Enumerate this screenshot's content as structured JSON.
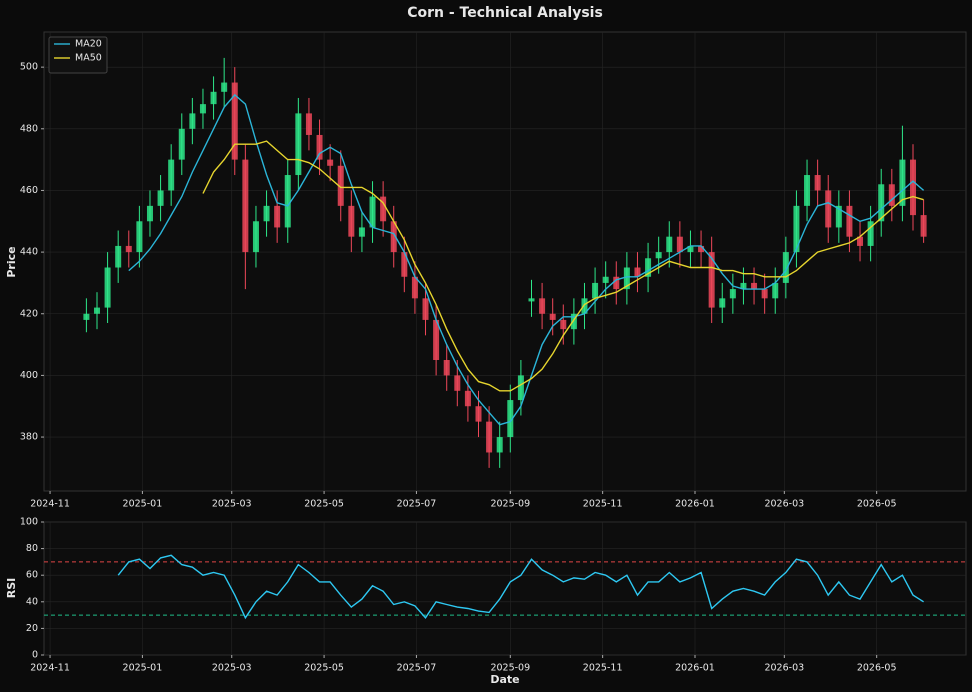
{
  "chart_data": [
    {
      "type": "candlestick",
      "title": "Corn - Technical Analysis",
      "ylabel": "Price",
      "x": [
        "2024-11-25",
        "2024-12-02",
        "2024-12-09",
        "2024-12-16",
        "2024-12-23",
        "2024-12-30",
        "2025-01-06",
        "2025-01-13",
        "2025-01-20",
        "2025-01-27",
        "2025-02-03",
        "2025-02-10",
        "2025-02-17",
        "2025-02-24",
        "2025-03-03",
        "2025-03-10",
        "2025-03-17",
        "2025-03-24",
        "2025-03-31",
        "2025-04-07",
        "2025-04-14",
        "2025-04-21",
        "2025-04-28",
        "2025-05-05",
        "2025-05-12",
        "2025-05-19",
        "2025-05-26",
        "2025-06-02",
        "2025-06-09",
        "2025-06-16",
        "2025-06-23",
        "2025-06-30",
        "2025-07-07",
        "2025-07-14",
        "2025-07-21",
        "2025-07-28",
        "2025-08-04",
        "2025-08-11",
        "2025-08-18",
        "2025-08-25",
        "2025-09-01",
        "2025-09-08",
        "2025-09-15",
        "2025-09-22",
        "2025-09-29",
        "2025-10-06",
        "2025-10-13",
        "2025-10-20",
        "2025-10-27",
        "2025-11-03",
        "2025-11-10",
        "2025-11-17",
        "2025-11-24",
        "2025-12-01",
        "2025-12-08",
        "2025-12-15",
        "2025-12-22",
        "2025-12-29",
        "2026-01-05",
        "2026-01-12",
        "2026-01-19",
        "2026-01-26",
        "2026-02-02",
        "2026-02-09",
        "2026-02-16",
        "2026-02-23",
        "2026-03-02",
        "2026-03-09",
        "2026-03-16",
        "2026-03-23",
        "2026-03-30",
        "2026-04-06",
        "2026-04-13",
        "2026-04-20",
        "2026-04-27",
        "2026-05-04",
        "2026-05-11",
        "2026-05-18",
        "2026-05-25",
        "2026-06-01"
      ],
      "open": [
        418,
        420,
        422,
        435,
        442,
        440,
        450,
        455,
        460,
        470,
        480,
        485,
        488,
        492,
        495,
        470,
        440,
        450,
        455,
        448,
        465,
        485,
        478,
        470,
        468,
        455,
        445,
        448,
        458,
        450,
        440,
        432,
        425,
        418,
        405,
        400,
        395,
        390,
        385,
        375,
        380,
        392,
        424,
        425,
        420,
        418,
        415,
        420,
        425,
        430,
        432,
        428,
        435,
        432,
        438,
        440,
        445,
        440,
        442,
        440,
        422,
        425,
        428,
        430,
        428,
        425,
        430,
        440,
        455,
        465,
        460,
        448,
        455,
        445,
        442,
        450,
        462,
        455,
        470,
        452
      ],
      "high": [
        425,
        427,
        440,
        447,
        447,
        455,
        460,
        465,
        475,
        485,
        490,
        493,
        497,
        503,
        500,
        475,
        455,
        460,
        460,
        470,
        490,
        490,
        483,
        475,
        473,
        460,
        453,
        463,
        463,
        455,
        445,
        437,
        430,
        423,
        410,
        405,
        400,
        395,
        390,
        385,
        397,
        405,
        431,
        430,
        425,
        423,
        425,
        430,
        435,
        437,
        437,
        440,
        440,
        443,
        445,
        450,
        450,
        447,
        447,
        445,
        430,
        433,
        435,
        435,
        433,
        435,
        445,
        460,
        470,
        470,
        465,
        460,
        460,
        450,
        455,
        467,
        467,
        481,
        475,
        457
      ],
      "low": [
        414,
        415,
        417,
        430,
        435,
        435,
        445,
        450,
        455,
        465,
        475,
        480,
        483,
        487,
        465,
        428,
        435,
        445,
        443,
        443,
        460,
        473,
        465,
        463,
        450,
        440,
        440,
        443,
        445,
        435,
        427,
        420,
        413,
        400,
        395,
        390,
        385,
        380,
        370,
        370,
        375,
        387,
        419,
        415,
        413,
        410,
        410,
        415,
        420,
        425,
        423,
        423,
        427,
        427,
        433,
        435,
        435,
        435,
        435,
        417,
        417,
        420,
        423,
        423,
        420,
        420,
        425,
        435,
        450,
        455,
        443,
        443,
        440,
        437,
        437,
        445,
        450,
        450,
        447,
        443
      ],
      "close": [
        420,
        422,
        435,
        442,
        440,
        450,
        455,
        460,
        470,
        480,
        485,
        488,
        492,
        495,
        470,
        440,
        450,
        455,
        448,
        465,
        485,
        478,
        470,
        468,
        455,
        445,
        448,
        458,
        450,
        440,
        432,
        425,
        418,
        405,
        400,
        395,
        390,
        385,
        375,
        380,
        392,
        400,
        425,
        420,
        418,
        415,
        420,
        425,
        430,
        432,
        428,
        435,
        432,
        438,
        440,
        445,
        440,
        442,
        440,
        422,
        425,
        428,
        430,
        428,
        425,
        430,
        440,
        455,
        465,
        460,
        448,
        455,
        445,
        442,
        450,
        462,
        455,
        470,
        452,
        445
      ],
      "up_color": "#2ee88a",
      "down_color": "#f0485a",
      "series": [
        {
          "name": "MA20",
          "color": "#2bb5d8",
          "values": [
            null,
            null,
            null,
            null,
            434,
            437,
            441,
            446,
            452,
            458,
            466,
            473,
            480,
            487,
            491,
            488,
            476,
            465,
            456,
            455,
            460,
            466,
            472,
            474,
            472,
            462,
            453,
            448,
            447,
            446,
            440,
            432,
            428,
            418,
            410,
            403,
            397,
            392,
            388,
            384,
            385,
            390,
            400,
            410,
            416,
            419,
            419,
            420,
            424,
            428,
            431,
            432,
            432,
            434,
            436,
            438,
            440,
            442,
            442,
            438,
            433,
            429,
            428,
            428,
            428,
            430,
            434,
            441,
            449,
            455,
            456,
            454,
            452,
            450,
            451,
            454,
            457,
            460,
            463,
            460
          ]
        },
        {
          "name": "MA50",
          "color": "#e6d52e",
          "values": [
            null,
            null,
            null,
            null,
            null,
            null,
            null,
            null,
            null,
            null,
            null,
            459,
            466,
            470,
            475,
            475,
            475,
            476,
            473,
            470,
            470,
            469,
            467,
            464,
            461,
            461,
            461,
            459,
            456,
            450,
            444,
            436,
            430,
            423,
            415,
            408,
            402,
            398,
            397,
            395,
            395,
            397,
            399,
            402,
            407,
            413,
            418,
            423,
            425,
            426,
            427,
            429,
            431,
            433,
            435,
            437,
            436,
            435,
            435,
            435,
            434,
            434,
            433,
            433,
            432,
            432,
            432,
            434,
            437,
            440,
            441,
            442,
            443,
            445,
            448,
            451,
            454,
            457,
            458,
            457
          ]
        }
      ],
      "legend": "upper left",
      "grid": true,
      "xlim": [
        "2024-10-28",
        "2026-06-29"
      ],
      "xticks": [
        "2024-11",
        "2025-01",
        "2025-03",
        "2025-05",
        "2025-07",
        "2025-09",
        "2025-11",
        "2026-01",
        "2026-03",
        "2026-05"
      ],
      "ylim": [
        362.5,
        511.4
      ],
      "yticks": [
        380,
        400,
        420,
        440,
        460,
        480,
        500
      ]
    },
    {
      "type": "line",
      "ylabel": "RSI",
      "xlabel": "Date",
      "series": [
        {
          "color": "#2ec8f2",
          "values": [
            null,
            null,
            null,
            60,
            70,
            72,
            65,
            73,
            75,
            68,
            66,
            60,
            62,
            60,
            45,
            28,
            40,
            48,
            45,
            55,
            68,
            62,
            55,
            55,
            45,
            36,
            42,
            52,
            48,
            38,
            40,
            37,
            28,
            40,
            38,
            36,
            35,
            33,
            32,
            42,
            55,
            60,
            72,
            64,
            60,
            55,
            58,
            57,
            62,
            60,
            55,
            60,
            45,
            55,
            55,
            62,
            55,
            58,
            62,
            35,
            42,
            48,
            50,
            48,
            45,
            55,
            62,
            72,
            70,
            60,
            45,
            55,
            45,
            42,
            55,
            68,
            55,
            60,
            45,
            40
          ]
        }
      ],
      "hlines": [
        {
          "value": 70,
          "color": "#e04545"
        },
        {
          "value": 30,
          "color": "#1fc08a"
        }
      ],
      "grid": true,
      "xlim": [
        "2024-10-28",
        "2026-06-29"
      ],
      "xticks": [
        "2024-11",
        "2025-01",
        "2025-03",
        "2025-05",
        "2025-07",
        "2025-09",
        "2025-11",
        "2026-01",
        "2026-03",
        "2026-05"
      ],
      "ylim": [
        0,
        100
      ],
      "yticks": [
        0,
        20,
        40,
        60,
        80,
        100
      ]
    }
  ]
}
